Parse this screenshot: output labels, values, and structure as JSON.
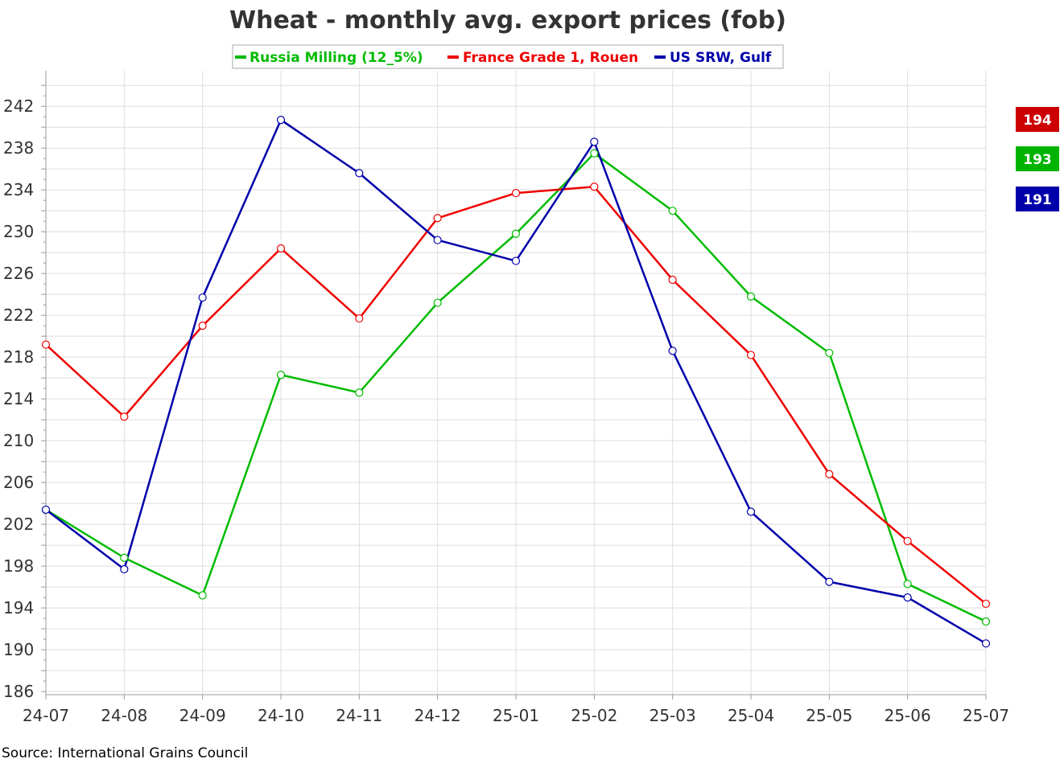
{
  "colors": {
    "russia": "#00bb00",
    "france": "#ee0000",
    "us": "#0000aa",
    "grid": "#dddddd",
    "axis": "#999999",
    "badge_france": "#cc0000",
    "badge_russia": "#00b300",
    "badge_us": "#0000aa"
  },
  "chart_data": {
    "type": "line",
    "title": "Wheat - monthly avg. export prices (fob)",
    "x": [
      "24-07",
      "24-08",
      "24-09",
      "24-10",
      "24-11",
      "24-12",
      "25-01",
      "25-02",
      "25-03",
      "25-04",
      "25-05",
      "25-06",
      "25-07"
    ],
    "yticks": [
      186,
      190,
      194,
      198,
      202,
      206,
      210,
      214,
      218,
      222,
      226,
      230,
      234,
      238,
      242
    ],
    "ylim": [
      185.7,
      245.4
    ],
    "grid": true,
    "legend_position": "top",
    "series": [
      {
        "key": "russia",
        "name": "Russia Milling (12_5%)",
        "values": [
          203.4,
          198.8,
          195.2,
          216.3,
          214.6,
          223.2,
          229.8,
          237.5,
          232.0,
          223.8,
          218.4,
          196.3,
          192.7
        ]
      },
      {
        "key": "france",
        "name": "France Grade 1, Rouen",
        "values": [
          219.2,
          212.3,
          221.0,
          228.4,
          221.7,
          231.3,
          233.7,
          234.3,
          225.4,
          218.2,
          206.8,
          200.4,
          194.4
        ]
      },
      {
        "key": "us",
        "name": "US SRW, Gulf",
        "values": [
          203.4,
          197.7,
          223.7,
          240.7,
          235.6,
          229.2,
          227.2,
          238.6,
          218.6,
          203.2,
          196.5,
          195.0,
          190.6
        ]
      }
    ],
    "last_value_badges": [
      {
        "key": "france",
        "label": "194"
      },
      {
        "key": "russia",
        "label": "193"
      },
      {
        "key": "us",
        "label": "191"
      }
    ],
    "source": "Source: International Grains Council"
  }
}
